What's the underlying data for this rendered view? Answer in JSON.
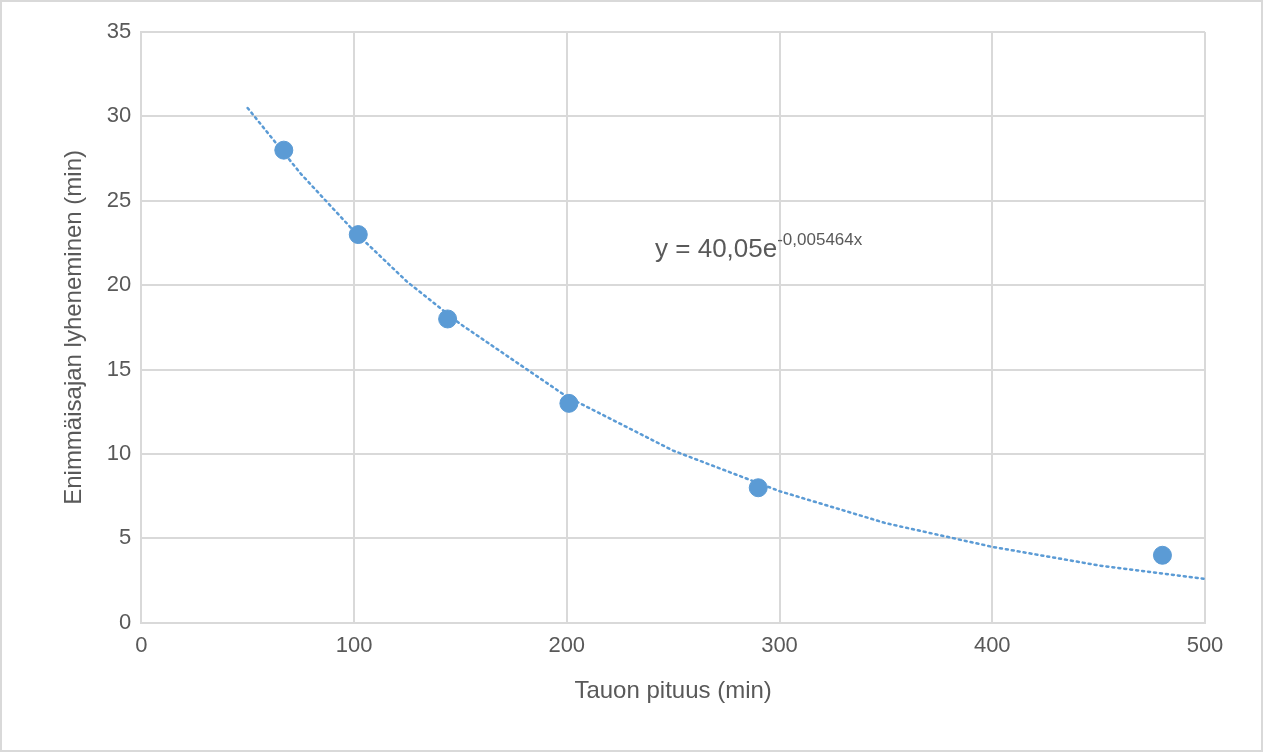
{
  "chart_data": {
    "type": "scatter",
    "xlabel": "Tauon pituus (min)",
    "ylabel": "Enimmäisajan lyheneminen (min)",
    "xlim": [
      0,
      500
    ],
    "xticks": [
      0,
      100,
      200,
      300,
      400,
      500
    ],
    "ylim": [
      0,
      35
    ],
    "yticks": [
      0,
      5,
      10,
      15,
      20,
      25,
      30,
      35
    ],
    "grid": true,
    "legend": false,
    "marker": "circle",
    "annotations": [
      "y = 40,05e$^{-0,005464x}$"
    ],
    "series": [
      {
        "color": "#5b9bd5",
        "x": [
          67,
          102,
          144,
          201,
          290,
          480
        ],
        "values": [
          28,
          23,
          18,
          13,
          8,
          4
        ]
      },
      {
        "type": "line",
        "color": "#5b9bd5",
        "line_style": "dotted",
        "marker": "none",
        "x": [
          50,
          75,
          100,
          125,
          150,
          200,
          250,
          300,
          350,
          400,
          450,
          500
        ],
        "values": [
          30.5,
          26.6,
          23.2,
          20.2,
          17.7,
          13.4,
          10.2,
          7.8,
          5.9,
          4.5,
          3.4,
          2.6
        ]
      }
    ]
  }
}
